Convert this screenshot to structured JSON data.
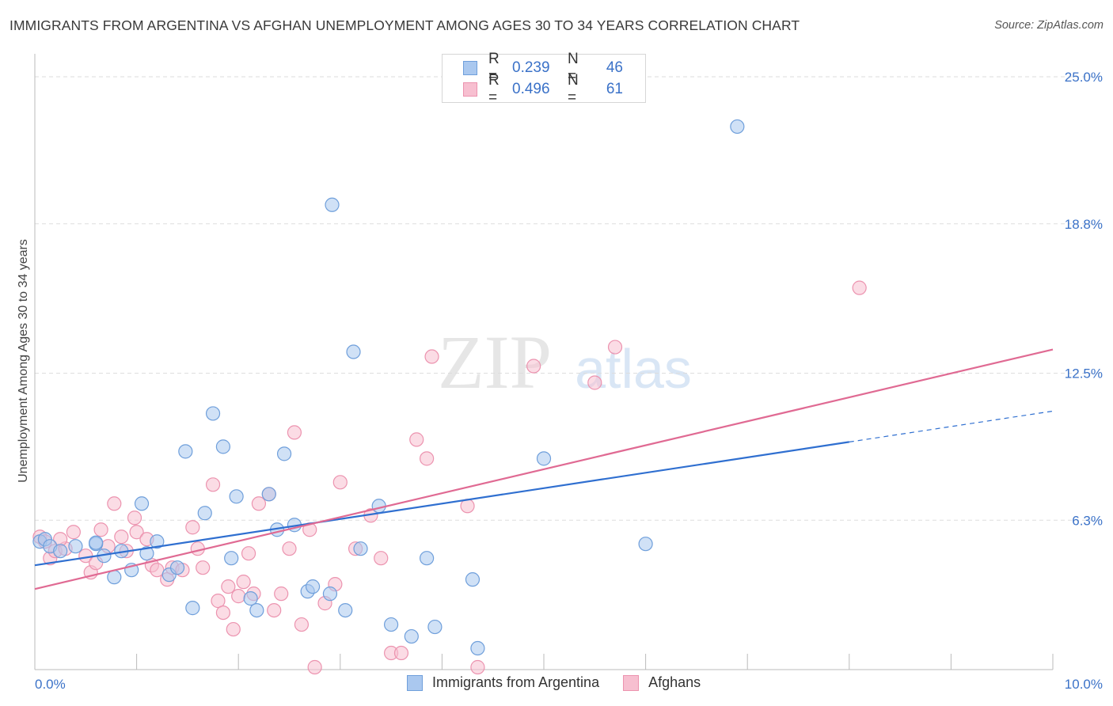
{
  "title": "IMMIGRANTS FROM ARGENTINA VS AFGHAN UNEMPLOYMENT AMONG AGES 30 TO 34 YEARS CORRELATION CHART",
  "source": "Source: ZipAtlas.com",
  "watermark": {
    "zip": "ZIP",
    "atlas": "atlas"
  },
  "legend": {
    "rows": [
      {
        "r_label": "R =",
        "r_value": "0.239",
        "n_label": "N =",
        "n_value": "46"
      },
      {
        "r_label": "R =",
        "r_value": "0.496",
        "n_label": "N =",
        "n_value": "61"
      }
    ]
  },
  "bottom_legend": {
    "series1": "Immigrants from Argentina",
    "series2": "Afghans"
  },
  "colors": {
    "blue_fill": "#aac8ef",
    "blue_stroke": "#6f9fdb",
    "blue_line": "#2f6fd0",
    "pink_fill": "#f7bfd0",
    "pink_stroke": "#ec93af",
    "pink_line": "#e06a93",
    "axis_text": "#3b72c8",
    "grid": "#dddddd"
  },
  "chart_data": {
    "type": "scatter",
    "title": "IMMIGRANTS FROM ARGENTINA VS AFGHAN UNEMPLOYMENT AMONG AGES 30 TO 34 YEARS CORRELATION CHART",
    "xlabel": "",
    "ylabel": "Unemployment Among Ages 30 to 34 years",
    "xlim": [
      0,
      10
    ],
    "ylim": [
      0,
      25
    ],
    "x_tick_labels": [
      {
        "value": 0,
        "label": "0.0%"
      },
      {
        "value": 10,
        "label": "10.0%"
      }
    ],
    "y_tick_labels": [
      {
        "value": 6.3,
        "label": "6.3%"
      },
      {
        "value": 12.5,
        "label": "12.5%"
      },
      {
        "value": 18.8,
        "label": "18.8%"
      },
      {
        "value": 25.0,
        "label": "25.0%"
      }
    ],
    "grid": true,
    "legend_position": "top-center",
    "series": [
      {
        "name": "Immigrants from Argentina",
        "r": 0.239,
        "n": 46,
        "trend": {
          "x0": 0,
          "y0": 4.4,
          "x1": 8.0,
          "y1": 9.6,
          "dash_to_x": 10,
          "dash_to_y": 10.9
        },
        "points": [
          [
            0.05,
            5.4
          ],
          [
            0.1,
            5.5
          ],
          [
            0.15,
            5.2
          ],
          [
            0.25,
            5.0
          ],
          [
            0.4,
            5.2
          ],
          [
            0.6,
            5.3
          ],
          [
            0.68,
            4.8
          ],
          [
            0.78,
            3.9
          ],
          [
            0.85,
            5.0
          ],
          [
            0.95,
            4.2
          ],
          [
            1.05,
            7.0
          ],
          [
            1.1,
            4.9
          ],
          [
            1.2,
            5.4
          ],
          [
            1.32,
            4.0
          ],
          [
            1.4,
            4.3
          ],
          [
            1.48,
            9.2
          ],
          [
            1.55,
            2.6
          ],
          [
            1.67,
            6.6
          ],
          [
            1.75,
            10.8
          ],
          [
            1.85,
            9.4
          ],
          [
            1.93,
            4.7
          ],
          [
            1.98,
            7.3
          ],
          [
            2.12,
            3.0
          ],
          [
            2.18,
            2.5
          ],
          [
            2.3,
            7.4
          ],
          [
            2.38,
            5.9
          ],
          [
            2.45,
            9.1
          ],
          [
            2.55,
            6.1
          ],
          [
            2.68,
            3.3
          ],
          [
            2.73,
            3.5
          ],
          [
            2.9,
            3.2
          ],
          [
            2.92,
            19.6
          ],
          [
            3.05,
            2.5
          ],
          [
            3.13,
            13.4
          ],
          [
            3.2,
            5.1
          ],
          [
            3.38,
            6.9
          ],
          [
            3.5,
            1.9
          ],
          [
            3.7,
            1.4
          ],
          [
            3.85,
            4.7
          ],
          [
            3.93,
            1.8
          ],
          [
            4.3,
            3.8
          ],
          [
            4.35,
            0.9
          ],
          [
            5.0,
            8.9
          ],
          [
            6.0,
            5.3
          ],
          [
            6.9,
            22.9
          ],
          [
            0.6,
            5.35
          ]
        ]
      },
      {
        "name": "Afghans",
        "r": 0.496,
        "n": 61,
        "trend": {
          "x0": 0,
          "y0": 3.4,
          "x1": 10,
          "y1": 13.5
        },
        "points": [
          [
            0.05,
            5.6
          ],
          [
            0.1,
            5.4
          ],
          [
            0.15,
            4.7
          ],
          [
            0.2,
            5.0
          ],
          [
            0.3,
            5.1
          ],
          [
            0.38,
            5.8
          ],
          [
            0.5,
            4.8
          ],
          [
            0.55,
            4.1
          ],
          [
            0.6,
            4.5
          ],
          [
            0.65,
            5.9
          ],
          [
            0.72,
            5.2
          ],
          [
            0.78,
            7.0
          ],
          [
            0.85,
            5.6
          ],
          [
            0.9,
            5.0
          ],
          [
            0.98,
            6.4
          ],
          [
            1.0,
            5.8
          ],
          [
            1.1,
            5.5
          ],
          [
            1.15,
            4.4
          ],
          [
            1.2,
            4.2
          ],
          [
            1.3,
            3.8
          ],
          [
            1.35,
            4.3
          ],
          [
            1.45,
            4.2
          ],
          [
            1.55,
            6.0
          ],
          [
            1.6,
            5.1
          ],
          [
            1.65,
            4.3
          ],
          [
            1.75,
            7.8
          ],
          [
            1.8,
            2.9
          ],
          [
            1.85,
            2.4
          ],
          [
            1.9,
            3.5
          ],
          [
            1.95,
            1.7
          ],
          [
            2.0,
            3.1
          ],
          [
            2.05,
            3.7
          ],
          [
            2.1,
            4.9
          ],
          [
            2.15,
            3.2
          ],
          [
            2.2,
            7.0
          ],
          [
            2.3,
            7.4
          ],
          [
            2.35,
            2.5
          ],
          [
            2.42,
            3.2
          ],
          [
            2.5,
            5.1
          ],
          [
            2.55,
            10.0
          ],
          [
            2.62,
            1.9
          ],
          [
            2.7,
            5.9
          ],
          [
            2.75,
            0.1
          ],
          [
            2.85,
            2.8
          ],
          [
            2.95,
            3.6
          ],
          [
            3.0,
            7.9
          ],
          [
            3.15,
            5.1
          ],
          [
            3.3,
            6.5
          ],
          [
            3.4,
            4.7
          ],
          [
            3.5,
            0.7
          ],
          [
            3.6,
            0.7
          ],
          [
            3.75,
            9.7
          ],
          [
            3.85,
            8.9
          ],
          [
            3.9,
            13.2
          ],
          [
            4.25,
            6.9
          ],
          [
            4.35,
            0.1
          ],
          [
            4.9,
            12.8
          ],
          [
            5.5,
            12.1
          ],
          [
            5.7,
            13.6
          ],
          [
            8.1,
            16.1
          ],
          [
            0.25,
            5.5
          ]
        ]
      }
    ]
  }
}
